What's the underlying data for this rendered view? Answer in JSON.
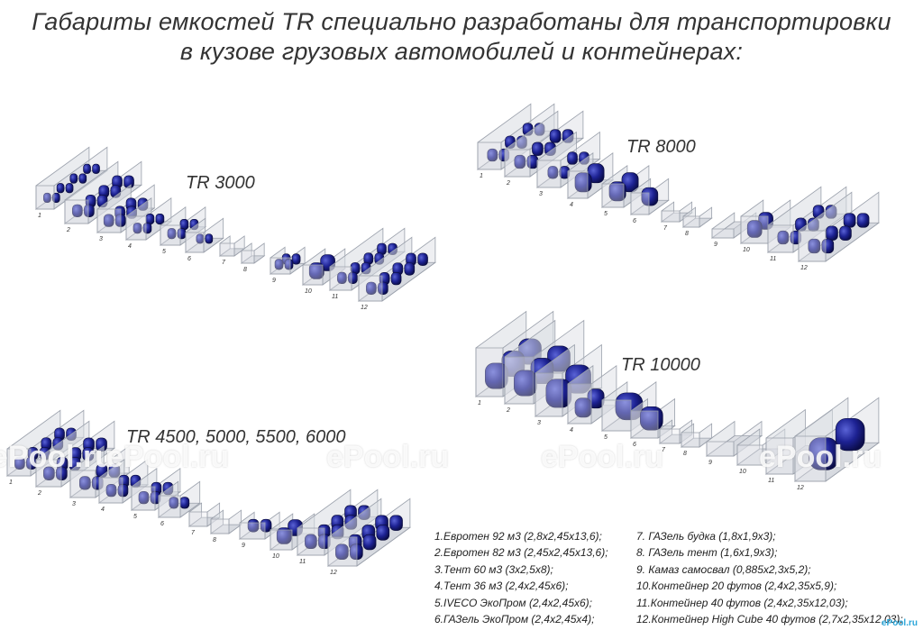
{
  "title": {
    "line1": "Габариты емкостей TR специально разработаны для транспортировки",
    "line2": "в кузове грузовых автомобилей и контейнерах:"
  },
  "groups": [
    {
      "label": "TR 3000",
      "numbers": [
        "1",
        "2",
        "3",
        "4",
        "5",
        "6",
        "7",
        "8",
        "9",
        "10",
        "11",
        "12"
      ]
    },
    {
      "label": "TR 8000",
      "numbers": [
        "1",
        "2",
        "3",
        "4",
        "5",
        "6",
        "7",
        "8",
        "9",
        "10",
        "11",
        "12"
      ]
    },
    {
      "label": "TR 10000",
      "numbers": [
        "1",
        "2",
        "3",
        "4",
        "5",
        "6",
        "7",
        "8",
        "9",
        "10",
        "11",
        "12"
      ]
    },
    {
      "label": "TR 4500, 5000, 5500, 6000",
      "numbers": [
        "1",
        "2",
        "3",
        "4",
        "5",
        "6",
        "7",
        "8",
        "9",
        "10",
        "11",
        "12"
      ]
    }
  ],
  "legend": {
    "left": [
      "1.Евротен 92 м3 (2,8x2,45x13,6);",
      "2.Евротен 82 м3 (2,45x2,45x13,6);",
      "3.Тент 60 м3 (3x2,5x8);",
      "4.Тент 36 м3 (2,4x2,45x6);",
      "5.IVECO ЭкоПром (2,4x2,45x6);",
      "6.ГАЗель ЭкоПром (2,4x2,45x4);"
    ],
    "right": [
      "7.  ГАЗель будка (1,8x1,9x3);",
      "8.  ГАЗель тент (1,6x1,9x3);",
      "9.  Камаз самосвал (0,885x2,3x5,2);",
      "10.Контейнер 20 футов (2,4x2,35x5,9);",
      "11.Контейнер 40 футов (2,4x2,35x12,03);",
      "12.Контейнер High Cube 40 футов (2,7x2,35x12,03);"
    ]
  },
  "watermark": "ePool.ru",
  "logo": "ePool.ru",
  "colors": {
    "tank": "#1b1f8c",
    "tank_highlight": "#4d56c9",
    "box": "#d9dce2",
    "box_edge": "#9aa0ab"
  }
}
